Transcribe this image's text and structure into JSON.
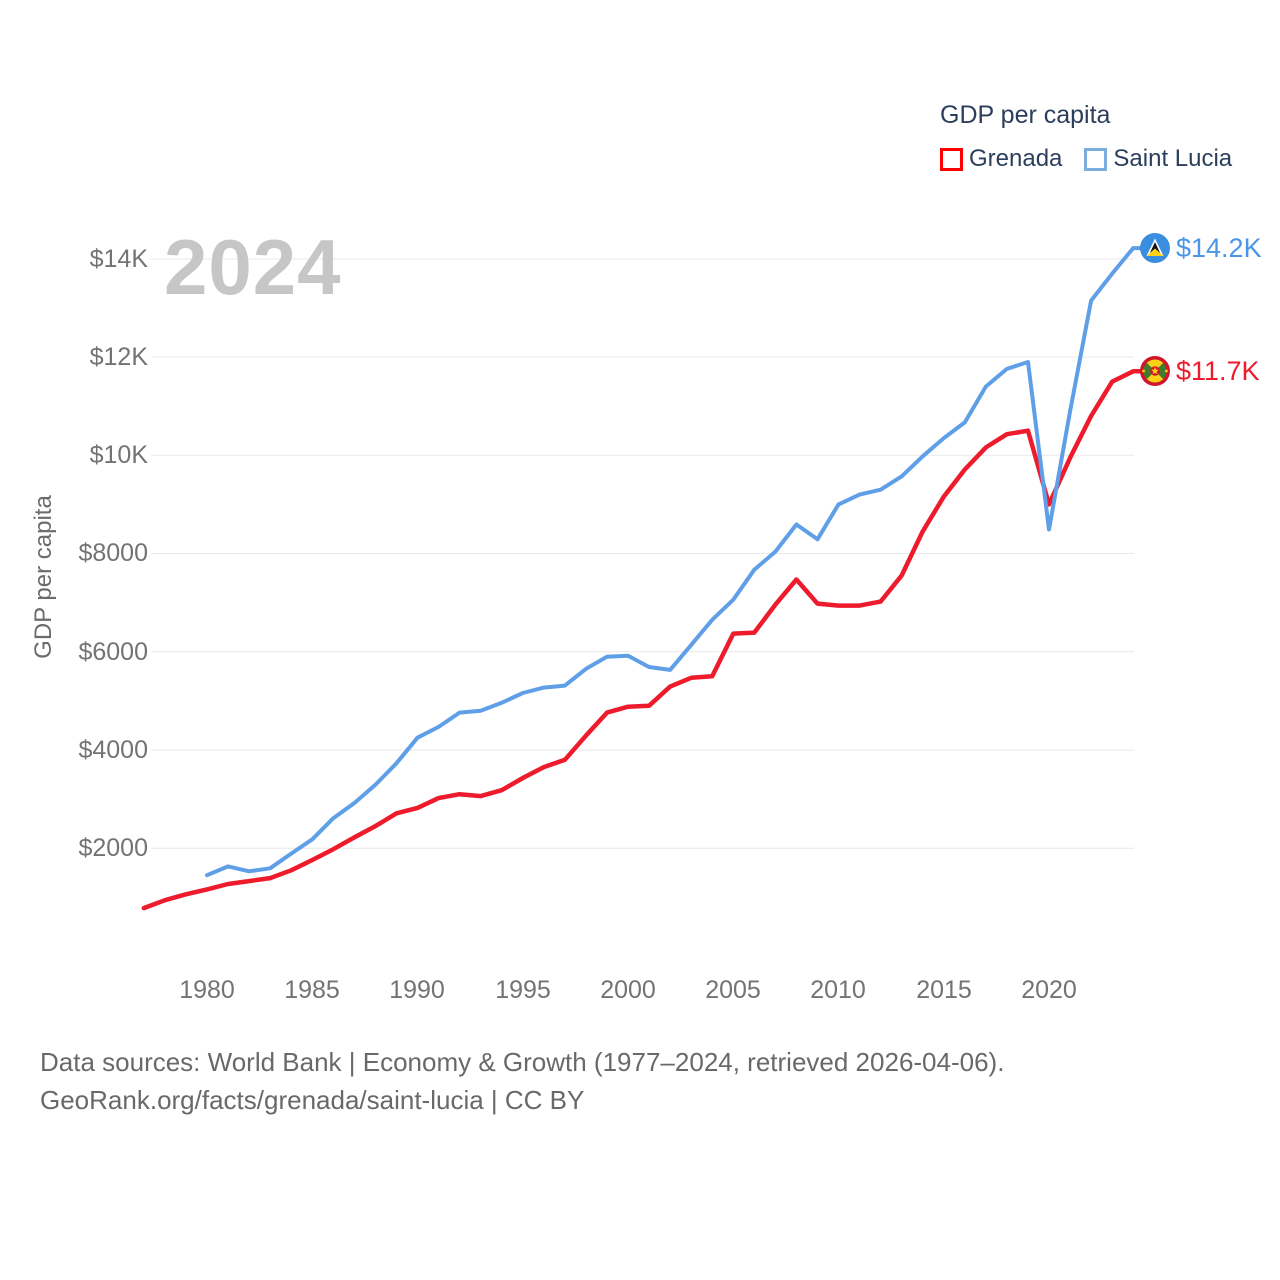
{
  "watermark": {
    "text": "2024"
  },
  "legend": {
    "title": "GDP per capita",
    "items": [
      {
        "label": "Grenada",
        "color": "#fe0002"
      },
      {
        "label": "Saint Lucia",
        "color": "#7badde"
      }
    ]
  },
  "y_axis": {
    "title": "GDP per capita",
    "ticks": [
      "$14K",
      "$12K",
      "$10K",
      "$8000",
      "$6000",
      "$4000",
      "$2000"
    ]
  },
  "x_axis": {
    "ticks": [
      "1980",
      "1985",
      "1990",
      "1995",
      "2000",
      "2005",
      "2010",
      "2015",
      "2020"
    ]
  },
  "end_labels": [
    {
      "series": "Saint Lucia",
      "value": "$14.2K",
      "color": "#4a95e8",
      "flag": "saint-lucia-flag"
    },
    {
      "series": "Grenada",
      "value": "$11.7K",
      "color": "#ed1b2c",
      "flag": "grenada-flag"
    }
  ],
  "footer": {
    "line1": "Data sources: World Bank | Economy & Growth (1977–2024, retrieved 2026-04-06).",
    "line2": "GeoRank.org/facts/grenada/saint-lucia | CC BY"
  },
  "chart_data": {
    "type": "line",
    "title": "GDP per capita",
    "ylabel": "GDP per capita",
    "ylim": [
      0,
      15000
    ],
    "grid": "horizontal-only",
    "legend_position": "top-right",
    "y_grid_values": [
      2000,
      4000,
      6000,
      8000,
      10000,
      12000,
      14000
    ],
    "x_tick_years": [
      1980,
      1985,
      1990,
      1995,
      2000,
      2005,
      2010,
      2015,
      2020
    ],
    "x_years": [
      1977,
      1978,
      1979,
      1980,
      1981,
      1982,
      1983,
      1984,
      1985,
      1986,
      1987,
      1988,
      1989,
      1990,
      1991,
      1992,
      1993,
      1994,
      1995,
      1996,
      1997,
      1998,
      1999,
      2000,
      2001,
      2002,
      2003,
      2004,
      2005,
      2006,
      2007,
      2008,
      2009,
      2010,
      2011,
      2012,
      2013,
      2014,
      2015,
      2016,
      2017,
      2018,
      2019,
      2020,
      2021,
      2022,
      2023,
      2024
    ],
    "series": [
      {
        "name": "Grenada",
        "color": "#ed1b2c",
        "end_label": "$11.7K",
        "values": [
          780,
          940,
          1060,
          1160,
          1270,
          1330,
          1390,
          1550,
          1760,
          1980,
          2220,
          2450,
          2710,
          2820,
          3020,
          3100,
          3060,
          3180,
          3430,
          3650,
          3800,
          4290,
          4760,
          4880,
          4900,
          5290,
          5470,
          5500,
          6370,
          6390,
          6960,
          7470,
          6980,
          6940,
          6940,
          7020,
          7550,
          8450,
          9160,
          9710,
          10160,
          10430,
          10500,
          9000,
          9950,
          10800,
          11500,
          11710
        ]
      },
      {
        "name": "Saint Lucia",
        "color": "#5f9fe8",
        "end_label": "$14.2K",
        "values": [
          null,
          null,
          null,
          1450,
          1630,
          1530,
          1590,
          1890,
          2180,
          2610,
          2920,
          3290,
          3730,
          4250,
          4470,
          4760,
          4800,
          4960,
          5160,
          5270,
          5310,
          5650,
          5900,
          5920,
          5690,
          5630,
          6140,
          6650,
          7060,
          7670,
          8040,
          8590,
          8290,
          9000,
          9200,
          9300,
          9570,
          9980,
          10350,
          10670,
          11400,
          11760,
          11900,
          8490,
          10900,
          13150,
          13700,
          14220
        ]
      }
    ]
  }
}
